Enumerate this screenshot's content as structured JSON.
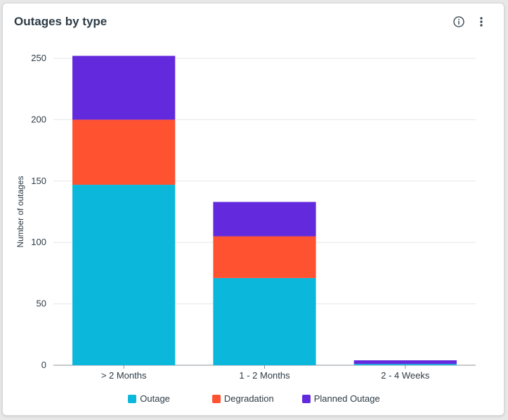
{
  "card": {
    "title": "Outages by type",
    "info_icon": "info-circle-icon",
    "more_icon": "vertical-dots-icon"
  },
  "chart_data": {
    "type": "bar",
    "stacked": true,
    "categories": [
      "> 2 Months",
      "1 - 2 Months",
      "2 - 4 Weeks"
    ],
    "series": [
      {
        "name": "Outage",
        "values": [
          147,
          71,
          1
        ],
        "color": "#0bb8db"
      },
      {
        "name": "Degradation",
        "values": [
          53,
          34,
          0
        ],
        "color": "#ff5230"
      },
      {
        "name": "Planned Outage",
        "values": [
          52,
          28,
          3
        ],
        "color": "#632add"
      }
    ],
    "ylabel": "Number of outages",
    "xlabel": "",
    "ylim": [
      0,
      250
    ],
    "yticks": [
      0,
      50,
      100,
      150,
      200,
      250
    ],
    "grid": true,
    "legend_position": "bottom"
  }
}
